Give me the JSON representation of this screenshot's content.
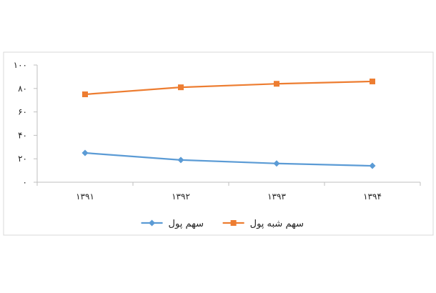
{
  "chart_data": {
    "type": "line",
    "categories": [
      "۱۳۹۱",
      "۱۳۹۲",
      "۱۳۹۳",
      "۱۳۹۴"
    ],
    "y_ticks": [
      "۰",
      "۲۰",
      "۴۰",
      "۶۰",
      "۸۰",
      "۱۰۰"
    ],
    "ylim": [
      0,
      100
    ],
    "grid": false,
    "legend_position": "bottom",
    "series": [
      {
        "name": "سهم پول",
        "values": [
          25,
          19,
          16,
          14
        ],
        "color": "#5b9bd5",
        "marker": "diamond"
      },
      {
        "name": "سهم شبه پول",
        "values": [
          75,
          81,
          84,
          86
        ],
        "color": "#ed7d31",
        "marker": "square"
      }
    ]
  }
}
